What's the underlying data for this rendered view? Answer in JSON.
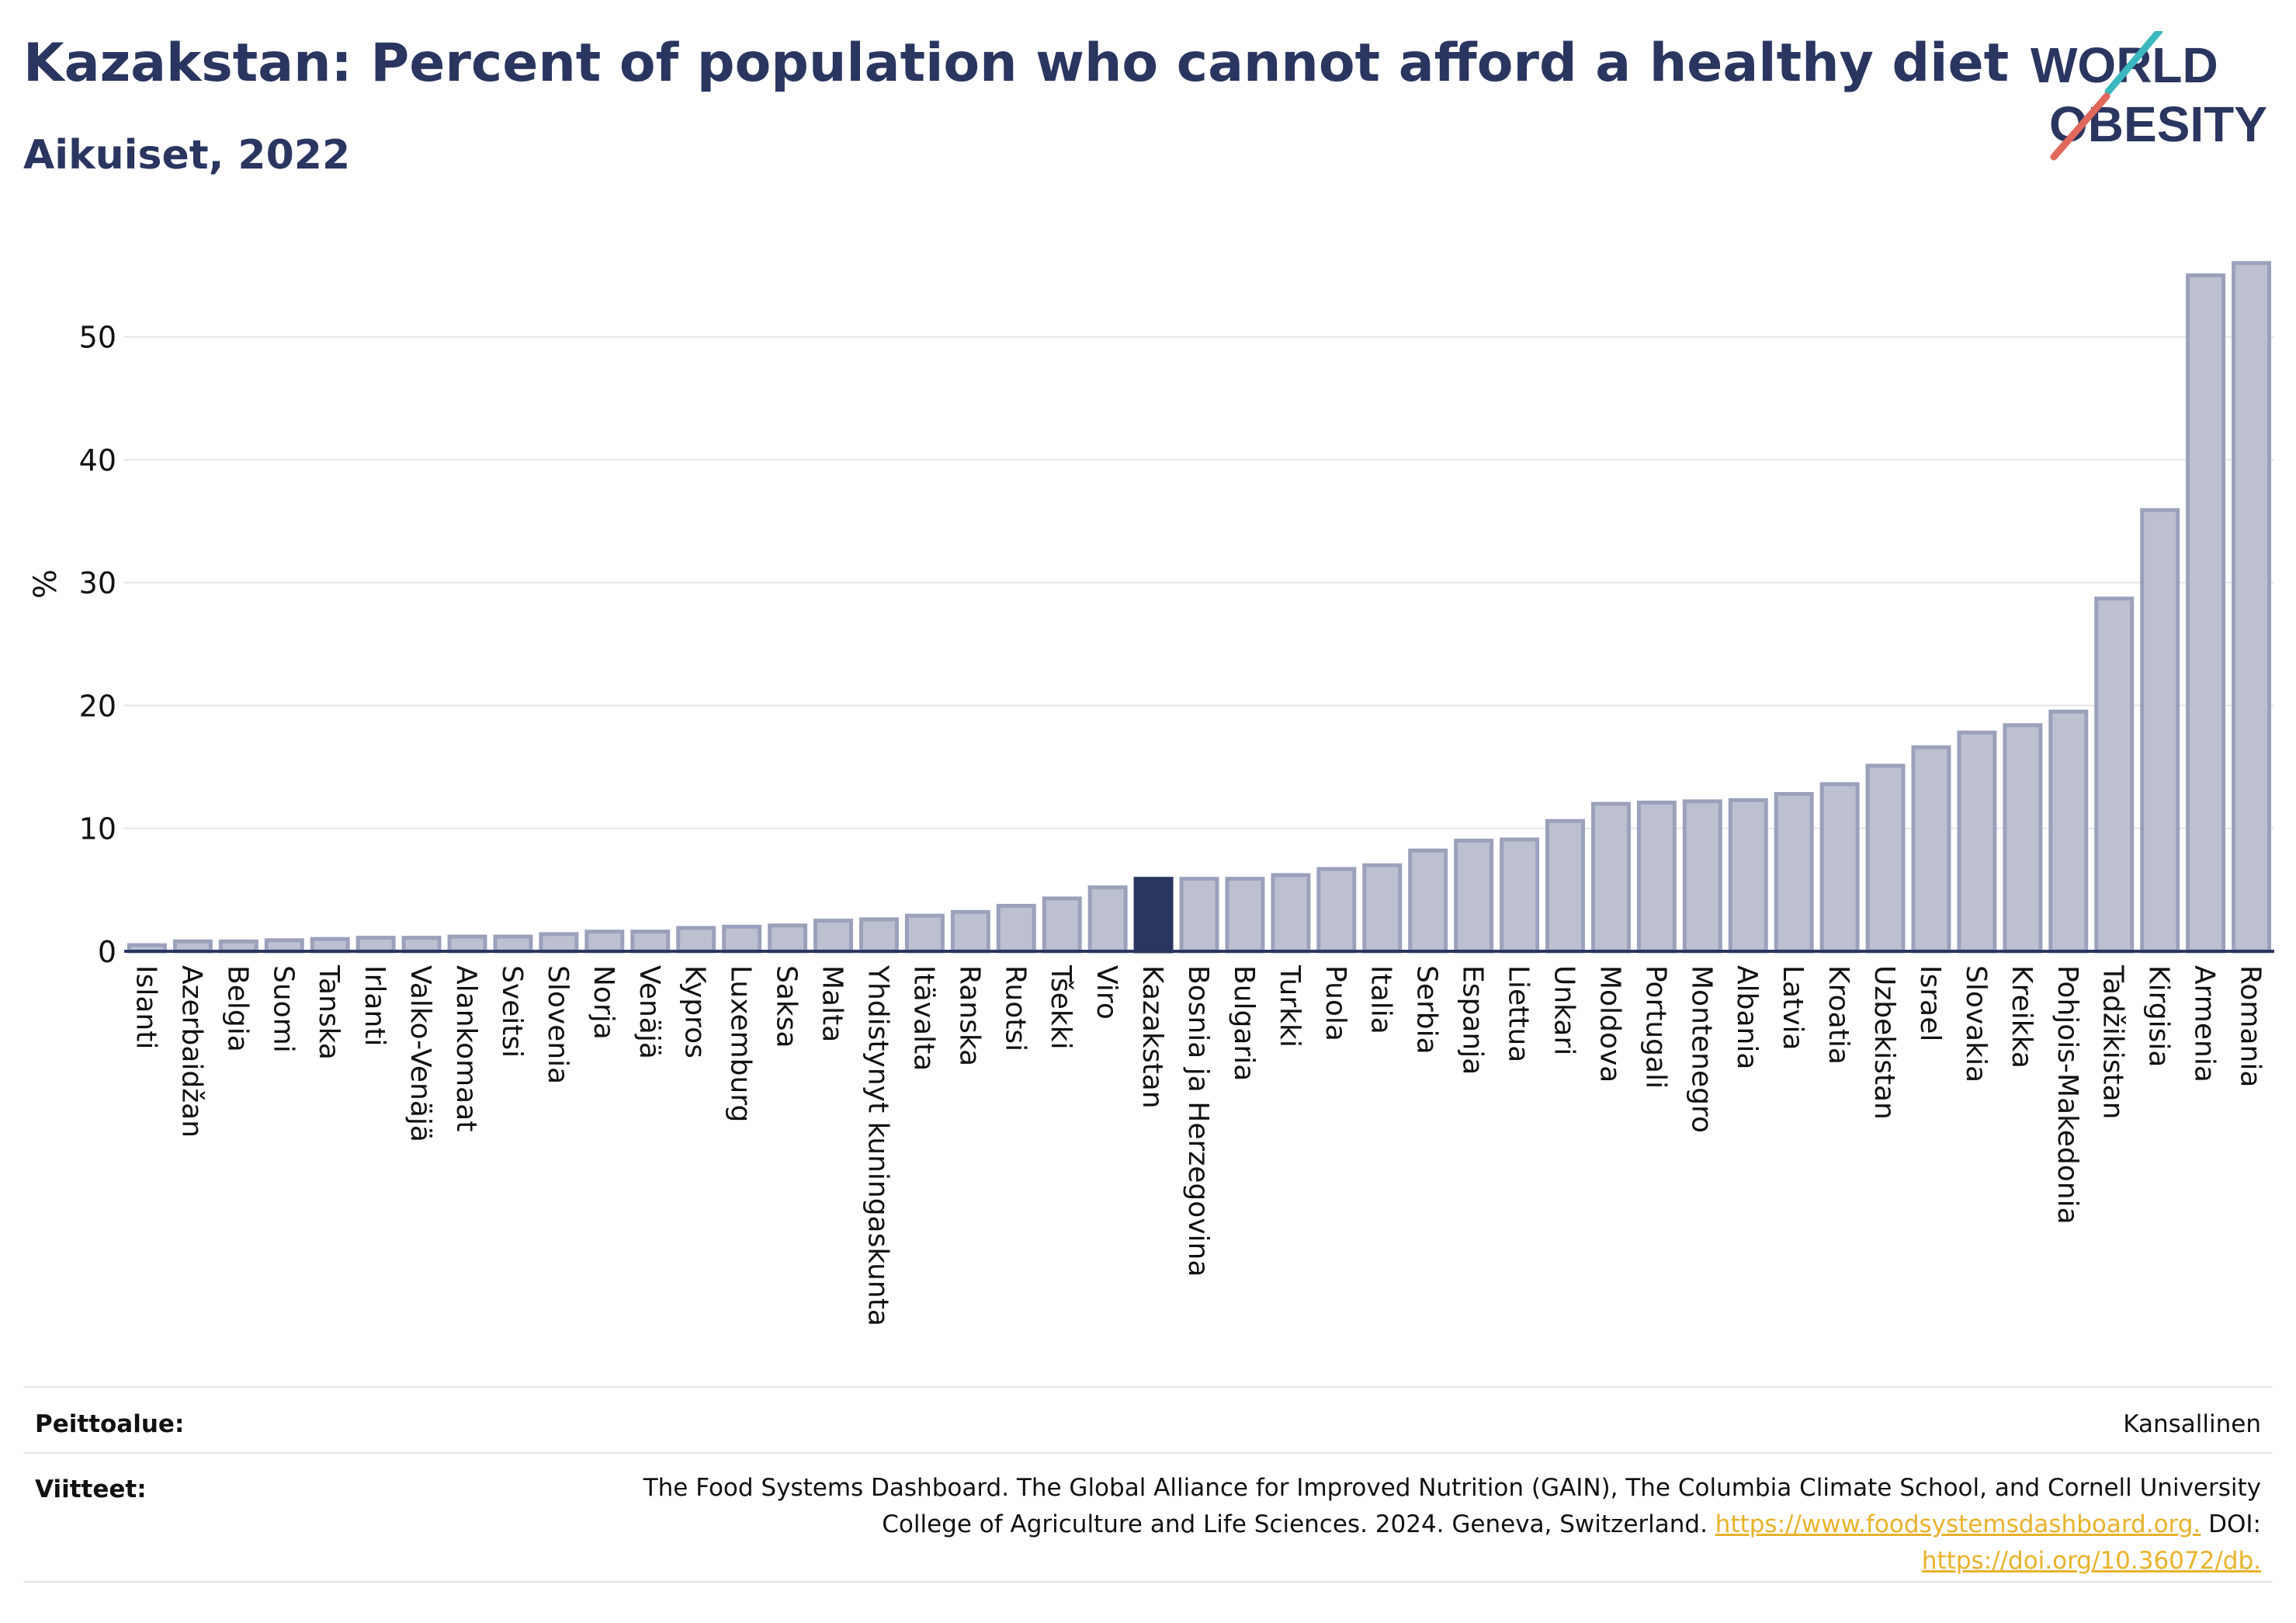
{
  "title": "Kazakstan: Percent of population who cannot afford a healthy diet",
  "subtitle": "Aikuiset, 2022",
  "logo": {
    "line1": "WORLD",
    "line2": "OBESITY",
    "colors": {
      "text": "#2a3560",
      "slash_top": "#3bb8bf",
      "slash_bottom": "#e0685c"
    }
  },
  "colors": {
    "bar": "#bcc0d0",
    "bar_border": "#9ba1bb",
    "highlight": "#2a3560",
    "grid": "#e6e6ea",
    "axis": "#2a3560",
    "text": "#111111",
    "link": "#e8b22a"
  },
  "chart_data": {
    "type": "bar",
    "ylabel": "%",
    "ylim": [
      0,
      57.5
    ],
    "yticks": [
      0,
      10,
      20,
      30,
      40,
      50
    ],
    "grid": true,
    "highlight": "Kazakstan",
    "categories": [
      "Islanti",
      "Azerbaidžan",
      "Belgia",
      "Suomi",
      "Tanska",
      "Irlanti",
      "Valko-Venäjä",
      "Alankomaat",
      "Sveitsi",
      "Slovenia",
      "Norja",
      "Venäjä",
      "Kypros",
      "Luxemburg",
      "Saksa",
      "Malta",
      "Yhdistynyt kuningaskunta",
      "Itävalta",
      "Ranska",
      "Ruotsi",
      "Tšekki",
      "Viro",
      "Kazakstan",
      "Bosnia ja Herzegovina",
      "Bulgaria",
      "Turkki",
      "Puola",
      "Italia",
      "Serbia",
      "Espanja",
      "Liettua",
      "Unkari",
      "Moldova",
      "Portugali",
      "Montenegro",
      "Albania",
      "Latvia",
      "Kroatia",
      "Uzbekistan",
      "Israel",
      "Slovakia",
      "Kreikka",
      "Pohjois-Makedonia",
      "Tadžikistan",
      "Kirgisia",
      "Armenia",
      "Romania"
    ],
    "values": [
      0.5,
      0.8,
      0.8,
      0.9,
      1.0,
      1.1,
      1.1,
      1.2,
      1.2,
      1.4,
      1.6,
      1.6,
      1.9,
      2.0,
      2.1,
      2.5,
      2.6,
      2.9,
      3.2,
      3.7,
      4.3,
      5.2,
      5.9,
      5.9,
      5.9,
      6.2,
      6.7,
      7.0,
      8.2,
      9.0,
      9.1,
      10.6,
      12.0,
      12.1,
      12.2,
      12.3,
      12.8,
      13.6,
      15.1,
      16.6,
      17.8,
      18.4,
      19.5,
      28.7,
      35.9,
      55.0,
      56.0
    ]
  },
  "footer": {
    "coverage_label": "Peittoalue:",
    "coverage_value": "Kansallinen",
    "refs_label": "Viitteet:",
    "refs_text_1": "The Food Systems Dashboard. The Global Alliance for Improved Nutrition (GAIN), The Columbia Climate School, and Cornell University",
    "refs_text_2": "College of Agriculture and Life Sciences. 2024. Geneva, Switzerland.",
    "refs_link_1": "https://www.foodsystemsdashboard.org.",
    "refs_doi_label": "DOI:",
    "refs_link_2": "https://doi.org/10.36072/db."
  }
}
